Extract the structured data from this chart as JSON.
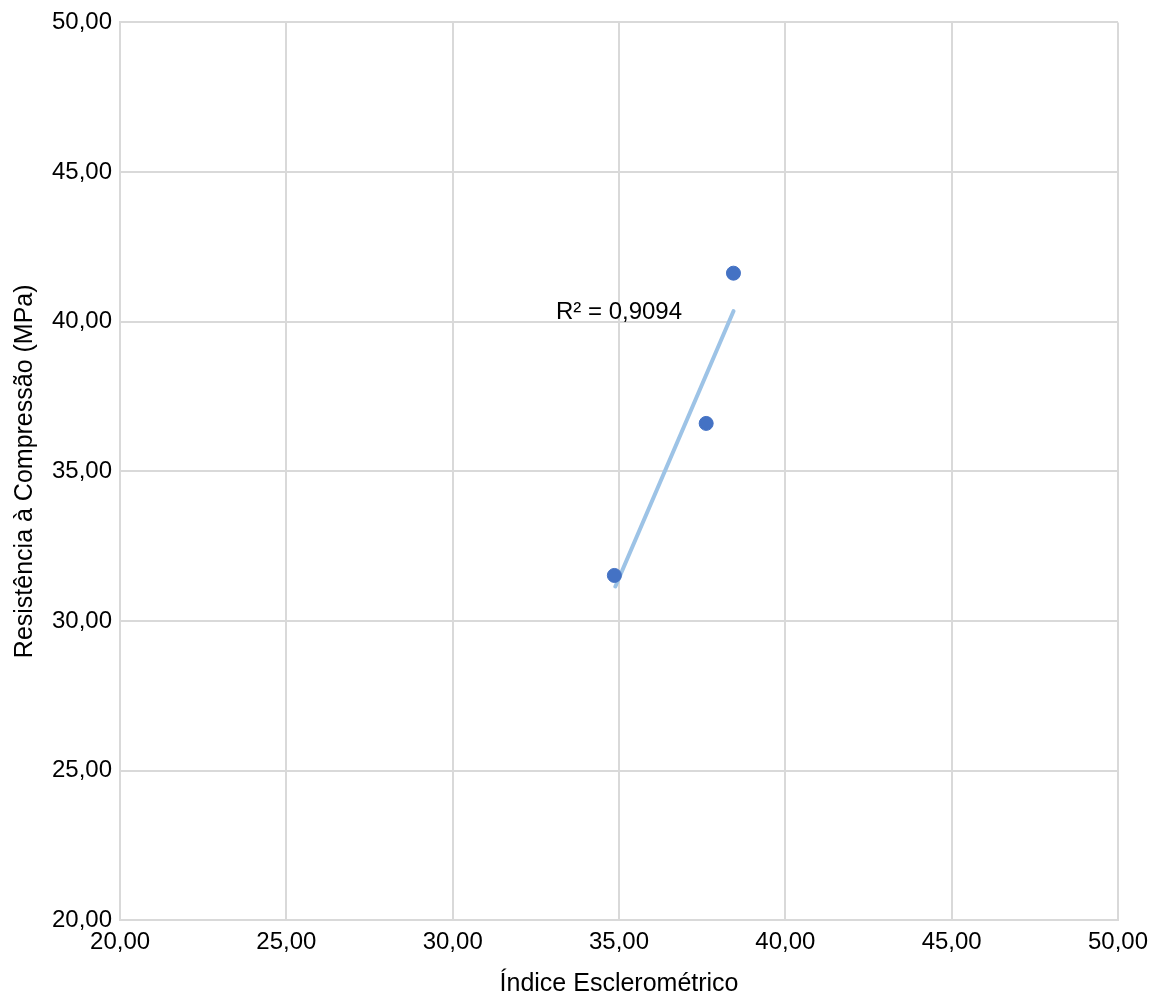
{
  "chart_data": {
    "type": "scatter",
    "xlabel": "Índice Esclerométrico",
    "ylabel": "Resistência à Compressão (MPa)",
    "xlim": [
      20,
      50
    ],
    "ylim": [
      20,
      50
    ],
    "xticks": [
      {
        "value": 20,
        "label": "20,00"
      },
      {
        "value": 25,
        "label": "25,00"
      },
      {
        "value": 30,
        "label": "30,00"
      },
      {
        "value": 35,
        "label": "35,00"
      },
      {
        "value": 40,
        "label": "40,00"
      },
      {
        "value": 45,
        "label": "45,00"
      },
      {
        "value": 50,
        "label": "50,00"
      }
    ],
    "yticks": [
      {
        "value": 20,
        "label": "20,00"
      },
      {
        "value": 25,
        "label": "25,00"
      },
      {
        "value": 30,
        "label": "30,00"
      },
      {
        "value": 35,
        "label": "35,00"
      },
      {
        "value": 40,
        "label": "40,00"
      },
      {
        "value": 45,
        "label": "45,00"
      },
      {
        "value": 50,
        "label": "50,00"
      }
    ],
    "series": [
      {
        "color": "#4472c4",
        "marker": "circle",
        "x": [
          34.86,
          37.62,
          38.44
        ],
        "values": [
          31.52,
          36.6,
          41.62
        ]
      },
      {
        "type": "line",
        "color": "#9dc3e6",
        "marker": "none",
        "x": [
          34.89,
          38.44
        ],
        "values": [
          31.15,
          40.35
        ]
      }
    ],
    "annotations": [
      "R² = 0,9094"
    ],
    "grid": true,
    "legend": false,
    "line_style": "solid"
  }
}
